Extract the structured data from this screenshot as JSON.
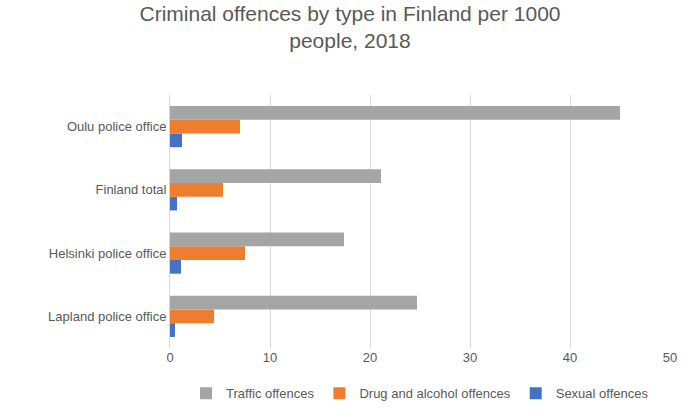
{
  "chart_data": {
    "type": "bar",
    "orientation": "horizontal",
    "title": "Criminal offences by type in Finland per 1000 people, 2018",
    "categories": [
      "Lapland police office",
      "Helsinki police office",
      "Finland total",
      "Oulu police office"
    ],
    "series": [
      {
        "name": "Traffic offences",
        "color": "#a5a5a5",
        "values": [
          24.7,
          17.4,
          21.1,
          45
        ]
      },
      {
        "name": "Drug and alcohol offences",
        "color": "#ed7d31",
        "values": [
          4.4,
          7.5,
          5.3,
          7
        ]
      },
      {
        "name": "Sexual offences",
        "color": "#4472c4",
        "values": [
          0.5,
          1.1,
          0.7,
          1.2
        ]
      }
    ],
    "xlim": [
      0,
      50
    ],
    "xticks": [
      0,
      10,
      20,
      30,
      40,
      50
    ],
    "grid": true,
    "legend": "bottom"
  }
}
